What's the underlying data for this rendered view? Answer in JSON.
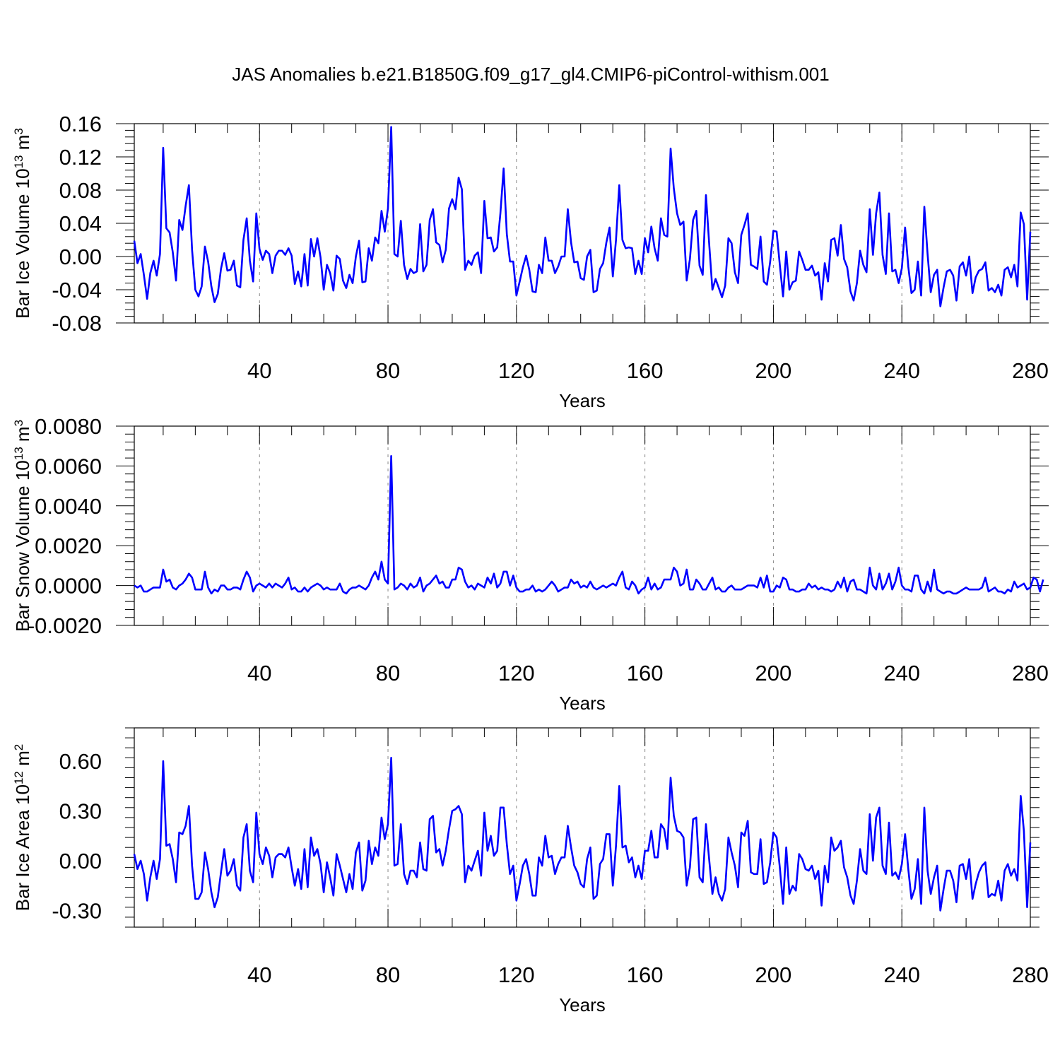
{
  "title": "JAS Anomalies b.e21.B1850G.f09_g17_gl4.CMIP6-piControl-withism.001",
  "colors": {
    "line": "#0000ff",
    "grid": "#888888",
    "axis": "#000000"
  },
  "chart_data": [
    {
      "type": "line",
      "title": "",
      "xlabel": "Years",
      "ylabel": "Bar Ice Volume 10^13 m^3",
      "xlim": [
        1,
        280
      ],
      "ylim": [
        -0.08,
        0.16
      ],
      "xticks": [
        40,
        80,
        120,
        160,
        200,
        240,
        280
      ],
      "xtick_labels": [
        "40",
        "80",
        "120",
        "160",
        "200",
        "240",
        "280"
      ],
      "yticks": [
        -0.08,
        -0.04,
        0.0,
        0.04,
        0.08,
        0.12,
        0.16
      ],
      "ytick_labels": [
        "-0.08",
        "-0.04",
        "0.00",
        "0.04",
        "0.08",
        "0.12",
        "0.16"
      ],
      "grid": "vertical dashed at major x ticks",
      "series": [
        {
          "values": [
            0.019,
            -0.008,
            0.003,
            -0.022,
            -0.051,
            -0.02,
            -0.005,
            -0.023,
            0.003,
            0.131,
            0.034,
            0.029,
            0.005,
            -0.029,
            0.044,
            0.032,
            0.061,
            0.086,
            0.008,
            -0.04,
            -0.048,
            -0.036,
            0.012,
            -0.006,
            -0.036,
            -0.055,
            -0.045,
            -0.015,
            0.004,
            -0.017,
            -0.016,
            -0.005,
            -0.035,
            -0.037,
            0.02,
            0.046,
            -0.005,
            -0.03,
            0.052,
            0.009,
            -0.004,
            0.007,
            0.003,
            -0.02,
            0.001,
            0.007,
            0.007,
            0.002,
            0.01,
            0.001,
            -0.033,
            -0.018,
            -0.036,
            0.003,
            -0.035,
            0.021,
            0.0,
            0.022,
            -0.001,
            -0.04,
            -0.01,
            -0.02,
            -0.041,
            0.001,
            -0.003,
            -0.029,
            -0.038,
            -0.022,
            -0.032,
            0.0,
            0.019,
            -0.031,
            -0.03,
            0.01,
            -0.005,
            0.023,
            0.016,
            0.055,
            0.03,
            0.058,
            0.156,
            0.003,
            0.0,
            0.043,
            -0.01,
            -0.027,
            -0.015,
            -0.02,
            -0.018,
            0.039,
            -0.018,
            -0.01,
            0.044,
            0.057,
            0.017,
            0.014,
            -0.007,
            0.008,
            0.058,
            0.069,
            0.057,
            0.095,
            0.081,
            -0.016,
            -0.005,
            -0.01,
            0.001,
            0.005,
            -0.02,
            0.067,
            0.022,
            0.023,
            0.006,
            0.011,
            0.052,
            0.106,
            0.027,
            -0.006,
            -0.006,
            -0.047,
            -0.03,
            -0.013,
            0.001,
            -0.016,
            -0.042,
            -0.043,
            -0.01,
            -0.02,
            0.023,
            -0.005,
            -0.005,
            -0.02,
            -0.012,
            0.0,
            0.0,
            0.057,
            0.017,
            -0.007,
            -0.006,
            -0.026,
            -0.028,
            0.0,
            0.008,
            -0.043,
            -0.041,
            -0.015,
            -0.008,
            0.017,
            0.035,
            -0.024,
            0.02,
            0.086,
            0.02,
            0.01,
            0.011,
            0.01,
            -0.021,
            -0.005,
            -0.021,
            0.022,
            0.005,
            0.036,
            0.01,
            -0.005,
            0.046,
            0.026,
            0.024,
            0.13,
            0.082,
            0.052,
            0.038,
            0.042,
            -0.029,
            -0.003,
            0.044,
            0.055,
            -0.011,
            -0.022,
            0.074,
            0.016,
            -0.04,
            -0.027,
            -0.038,
            -0.049,
            -0.035,
            0.022,
            0.016,
            -0.019,
            -0.032,
            0.026,
            0.038,
            0.052,
            -0.01,
            -0.012,
            -0.015,
            0.024,
            -0.03,
            -0.034,
            -0.006,
            0.031,
            0.03,
            -0.01,
            -0.048,
            0.006,
            -0.04,
            -0.031,
            -0.029,
            0.006,
            -0.004,
            -0.016,
            -0.016,
            -0.011,
            -0.023,
            -0.019,
            -0.052,
            -0.008,
            -0.03,
            0.02,
            0.022,
            0.001,
            0.038,
            -0.003,
            -0.013,
            -0.042,
            -0.053,
            -0.032,
            0.007,
            -0.01,
            -0.019,
            0.057,
            0.002,
            0.052,
            0.077,
            0.002,
            -0.021,
            0.052,
            -0.018,
            -0.016,
            -0.032,
            -0.014,
            0.035,
            -0.012,
            -0.044,
            -0.04,
            -0.006,
            -0.047,
            0.06,
            0.003,
            -0.043,
            -0.022,
            -0.016,
            -0.06,
            -0.037,
            -0.018,
            -0.016,
            -0.023,
            -0.053,
            -0.012,
            -0.007,
            -0.023,
            0.0,
            -0.044,
            -0.025,
            -0.017,
            -0.015,
            -0.007,
            -0.041,
            -0.038,
            -0.043,
            -0.034,
            -0.047,
            -0.016,
            -0.013,
            -0.025,
            -0.01,
            -0.036,
            0.053,
            0.039,
            -0.052,
            0.03
          ]
        }
      ]
    },
    {
      "type": "line",
      "title": "",
      "xlabel": "Years",
      "ylabel": "Bar Snow Volume 10^13 m^3",
      "xlim": [
        1,
        280
      ],
      "ylim": [
        -0.002,
        0.008
      ],
      "xticks": [
        40,
        80,
        120,
        160,
        200,
        240,
        280
      ],
      "xtick_labels": [
        "40",
        "80",
        "120",
        "160",
        "200",
        "240",
        "280"
      ],
      "yticks": [
        -0.002,
        0.0,
        0.002,
        0.004,
        0.006,
        0.008
      ],
      "ytick_labels": [
        "-0.0020",
        "0.0000",
        "0.0020",
        "0.0040",
        "0.0060",
        "0.0080"
      ],
      "grid": "vertical dashed at major x ticks",
      "series": [
        {
          "values": [
            0.0,
            -0.0001,
            0.0,
            -0.0003,
            -0.0003,
            -0.0002,
            -0.0001,
            -0.0001,
            -0.0001,
            0.0008,
            0.0002,
            0.0003,
            -0.0001,
            -0.0002,
            0.0,
            0.0001,
            0.0003,
            0.0006,
            0.0004,
            -0.0002,
            -0.0002,
            -0.0002,
            0.0007,
            -0.0001,
            -0.0004,
            -0.0002,
            -0.0003,
            0.0,
            0.0,
            -0.0002,
            -0.0002,
            -0.0001,
            -0.0001,
            -0.0002,
            0.0003,
            0.0007,
            0.0004,
            -0.0003,
            0.0,
            0.0001,
            0.0,
            -0.0001,
            0.0001,
            -0.0001,
            0.0001,
            0.0,
            -0.0001,
            0.0001,
            0.0004,
            -0.0002,
            -0.0001,
            -0.0003,
            -0.0003,
            -0.0001,
            -0.0003,
            -0.0001,
            0.0,
            0.0001,
            0.0,
            -0.0002,
            -0.0001,
            -0.0002,
            -0.0002,
            -0.0002,
            0.0001,
            -0.0003,
            -0.0004,
            -0.0002,
            -0.0001,
            -0.0001,
            0.0,
            -0.0001,
            -0.0002,
            0.0,
            0.0004,
            0.0007,
            0.0003,
            0.0012,
            0.0003,
            0.0001,
            0.0065,
            -0.0002,
            -0.0001,
            0.0001,
            0.0,
            -0.0002,
            0.0001,
            -0.0001,
            0.0,
            0.0004,
            -0.0003,
            0.0,
            0.0001,
            0.0003,
            0.0005,
            0.0001,
            0.0002,
            -0.0001,
            -0.0001,
            0.0003,
            0.0003,
            0.0009,
            0.0008,
            0.0002,
            -0.0001,
            0.0,
            -0.0002,
            0.0001,
            0.0,
            -0.0001,
            0.0004,
            0.0001,
            0.0006,
            -0.0001,
            0.0001,
            0.0007,
            0.0007,
            0.0,
            0.0005,
            -0.0001,
            -0.0003,
            -0.0003,
            -0.0002,
            -0.0002,
            0.0,
            -0.0003,
            -0.0002,
            -0.0003,
            -0.0002,
            0.0,
            0.0002,
            0.0,
            -0.0003,
            -0.0002,
            -0.0001,
            -0.0001,
            0.0003,
            0.0001,
            0.0002,
            -0.0001,
            0.0,
            -0.0001,
            0.0002,
            -0.0001,
            -0.0002,
            -0.0001,
            0.0,
            -0.0001,
            0.0,
            0.0001,
            0.0,
            0.0004,
            0.0007,
            -0.0001,
            -0.0002,
            0.0002,
            0.0,
            -0.0004,
            -0.0002,
            -0.0001,
            0.0004,
            -0.0002,
            0.0001,
            -0.0002,
            -0.0001,
            0.0003,
            0.0003,
            0.0003,
            0.0009,
            0.0007,
            0.0,
            0.0001,
            0.0008,
            -0.0002,
            -0.0002,
            0.0003,
            0.0001,
            -0.0002,
            -0.0002,
            0.0001,
            0.0004,
            -0.0002,
            -0.0001,
            -0.0003,
            -0.0003,
            -0.0001,
            0.0,
            -0.0002,
            -0.0002,
            -0.0002,
            -0.0001,
            0.0,
            0.0,
            0.0,
            -0.0001,
            0.0004,
            -0.0001,
            0.0005,
            -0.0003,
            -0.0003,
            0.0,
            -0.0001,
            0.0004,
            0.0003,
            -0.0002,
            -0.0002,
            -0.0003,
            -0.0003,
            -0.0002,
            -0.0002,
            0.0001,
            -0.0001,
            0.0,
            -0.0002,
            -0.0001,
            -0.0002,
            -0.0002,
            -0.0003,
            -0.0002,
            0.0002,
            -0.0001,
            0.0004,
            -0.0003,
            0.0002,
            0.0003,
            -0.0002,
            -0.0002,
            -0.0003,
            -0.0004,
            0.0009,
            0.0,
            -0.0002,
            0.0006,
            -0.0002,
            0.0001,
            0.0006,
            -0.0002,
            0.0002,
            0.0009,
            0.0,
            -0.0002,
            -0.0002,
            -0.0003,
            0.0005,
            0.0005,
            -0.0002,
            -0.0004,
            0.0002,
            -0.0003,
            0.0008,
            -0.0002,
            -0.0003,
            -0.0004,
            -0.0003,
            -0.0003,
            -0.0004,
            -0.0004,
            -0.0003,
            -0.0002,
            -0.0001,
            -0.0002,
            -0.0002,
            -0.0002,
            -0.0002,
            -0.0001,
            0.0004,
            -0.0003,
            -0.0002,
            -0.0001,
            -0.0003,
            -0.0003,
            -0.0004,
            -0.0002,
            -0.0003,
            0.0002,
            -0.0001,
            0.0,
            0.0001,
            -0.0002,
            -0.0001,
            0.0004,
            0.0003,
            -0.0003,
            0.0003
          ]
        }
      ]
    },
    {
      "type": "line",
      "title": "",
      "xlabel": "Years",
      "ylabel": "Bar Ice Area 10^12 m^2",
      "xlim": [
        1,
        280
      ],
      "ylim": [
        -0.4,
        0.8
      ],
      "xticks": [
        40,
        80,
        120,
        160,
        200,
        240,
        280
      ],
      "xtick_labels": [
        "40",
        "80",
        "120",
        "160",
        "200",
        "240",
        "280"
      ],
      "yticks": [
        -0.3,
        0.0,
        0.3,
        0.6
      ],
      "ytick_labels": [
        "-0.30",
        "0.00",
        "0.30",
        "0.60"
      ],
      "grid": "vertical dashed at major x ticks",
      "series": [
        {
          "values": [
            0.04,
            -0.05,
            0.0,
            -0.08,
            -0.24,
            -0.1,
            0.0,
            -0.11,
            0.01,
            0.6,
            0.09,
            0.1,
            0.01,
            -0.13,
            0.17,
            0.16,
            0.21,
            0.33,
            -0.03,
            -0.23,
            -0.23,
            -0.19,
            0.05,
            -0.05,
            -0.19,
            -0.28,
            -0.22,
            -0.07,
            0.07,
            -0.09,
            -0.06,
            0.01,
            -0.15,
            -0.18,
            0.14,
            0.22,
            -0.06,
            -0.13,
            0.29,
            0.04,
            -0.02,
            0.08,
            0.03,
            -0.1,
            0.02,
            0.04,
            0.04,
            0.02,
            0.08,
            -0.04,
            -0.15,
            -0.05,
            -0.17,
            0.07,
            -0.16,
            0.14,
            0.03,
            0.07,
            -0.02,
            -0.19,
            -0.01,
            -0.1,
            -0.21,
            0.04,
            -0.03,
            -0.11,
            -0.19,
            -0.08,
            -0.17,
            0.05,
            0.11,
            -0.18,
            -0.12,
            0.12,
            -0.02,
            0.08,
            0.03,
            0.26,
            0.13,
            0.22,
            0.62,
            -0.03,
            -0.02,
            0.22,
            -0.08,
            -0.14,
            -0.06,
            -0.06,
            -0.1,
            0.11,
            -0.05,
            -0.06,
            0.25,
            0.27,
            0.05,
            0.07,
            -0.03,
            0.06,
            0.19,
            0.3,
            0.31,
            0.33,
            0.28,
            -0.13,
            -0.03,
            -0.06,
            0.0,
            0.06,
            -0.09,
            0.29,
            0.06,
            0.15,
            0.03,
            0.06,
            0.32,
            0.32,
            0.1,
            -0.08,
            -0.03,
            -0.24,
            -0.14,
            -0.03,
            0.01,
            -0.08,
            -0.21,
            -0.21,
            0.02,
            -0.03,
            0.15,
            0.02,
            0.03,
            -0.08,
            -0.02,
            0.02,
            0.02,
            0.21,
            0.08,
            -0.03,
            -0.07,
            -0.14,
            -0.16,
            0.01,
            0.08,
            -0.23,
            -0.21,
            -0.02,
            0.01,
            0.16,
            0.16,
            -0.15,
            0.09,
            0.45,
            0.08,
            0.09,
            -0.01,
            0.02,
            -0.1,
            -0.03,
            -0.11,
            0.06,
            0.06,
            0.18,
            0.02,
            0.02,
            0.22,
            0.19,
            0.07,
            0.5,
            0.27,
            0.18,
            0.17,
            0.14,
            -0.15,
            -0.04,
            0.25,
            0.26,
            -0.1,
            -0.13,
            0.22,
            0.01,
            -0.2,
            -0.1,
            -0.2,
            -0.24,
            -0.17,
            0.14,
            0.05,
            -0.03,
            -0.16,
            0.17,
            0.15,
            0.24,
            -0.07,
            -0.08,
            -0.08,
            0.13,
            -0.14,
            -0.13,
            -0.01,
            0.17,
            0.14,
            -0.04,
            -0.26,
            0.08,
            -0.2,
            -0.15,
            -0.18,
            0.04,
            0.01,
            -0.05,
            -0.06,
            -0.03,
            -0.11,
            -0.06,
            -0.27,
            -0.03,
            -0.13,
            0.14,
            0.06,
            0.08,
            0.12,
            -0.04,
            -0.1,
            -0.21,
            -0.26,
            -0.12,
            0.07,
            -0.06,
            -0.08,
            0.28,
            0.0,
            0.26,
            0.32,
            -0.03,
            -0.08,
            0.23,
            -0.09,
            -0.07,
            -0.11,
            -0.02,
            0.16,
            -0.05,
            -0.23,
            -0.17,
            0.01,
            -0.26,
            0.32,
            -0.06,
            -0.2,
            -0.1,
            -0.03,
            -0.3,
            -0.17,
            -0.06,
            -0.06,
            -0.12,
            -0.25,
            -0.03,
            -0.02,
            -0.11,
            0.01,
            -0.23,
            -0.14,
            -0.07,
            -0.03,
            -0.01,
            -0.22,
            -0.2,
            -0.21,
            -0.12,
            -0.24,
            -0.06,
            -0.02,
            -0.09,
            -0.05,
            -0.12,
            0.39,
            0.18,
            -0.28,
            0.11
          ]
        }
      ]
    }
  ]
}
